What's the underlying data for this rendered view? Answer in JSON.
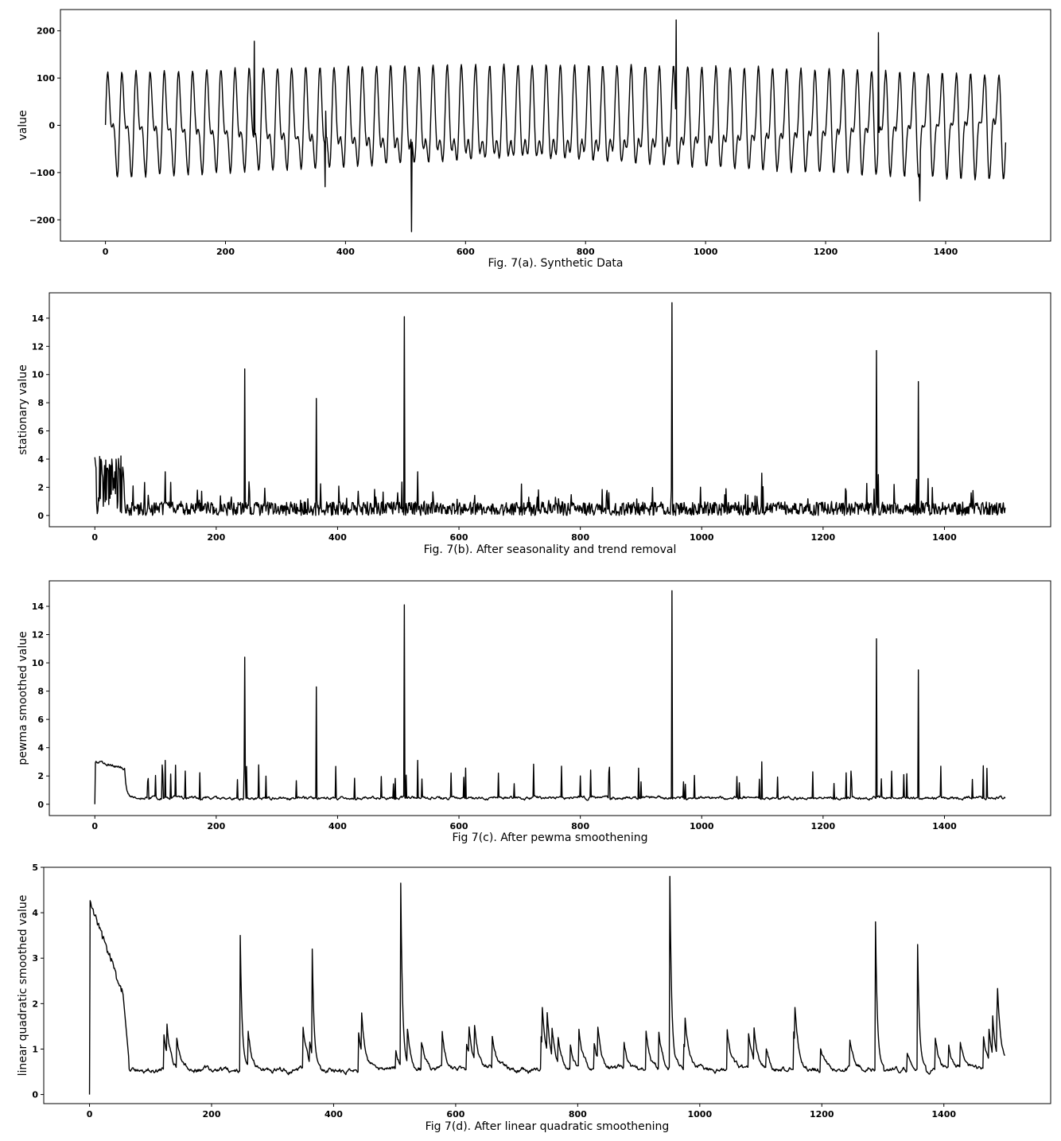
{
  "chart_data": [
    {
      "type": "line",
      "panel": "a",
      "caption": "Fig. 7(a). Synthetic Data",
      "xlabel": "",
      "ylabel": "value",
      "xlim": [
        -75,
        1575
      ],
      "ylim": [
        -245,
        245
      ],
      "xticks": [
        0,
        200,
        400,
        600,
        800,
        1000,
        1200,
        1400
      ],
      "xtick_labels": [
        "0",
        "200",
        "400",
        "600",
        "800",
        "1000",
        "1200",
        "1400"
      ],
      "yticks": [
        -200,
        -100,
        0,
        100,
        200
      ],
      "ytick_labels": [
        "−200",
        "−100",
        "0",
        "100",
        "200"
      ],
      "series": [
        {
          "color": "#000000",
          "generator": "seasonal",
          "x_range": [
            0,
            1500
          ],
          "components": [
            {
              "amp": 80,
              "period": 23.5
            },
            {
              "amp": 48,
              "period": 11.8
            }
          ],
          "spikes": [
            {
              "x": 248,
              "y": 178
            },
            {
              "x": 366,
              "y": -130
            },
            {
              "x": 367,
              "y": 30
            },
            {
              "x": 510,
              "y": -225
            },
            {
              "x": 951,
              "y": 223
            },
            {
              "x": 1288,
              "y": 196
            },
            {
              "x": 1357,
              "y": -160
            }
          ]
        }
      ]
    },
    {
      "type": "line",
      "panel": "b",
      "caption": "Fig. 7(b). After seasonality and trend removal",
      "xlabel": "",
      "ylabel": "stationary value",
      "xlim": [
        -75,
        1575
      ],
      "ylim": [
        -0.8,
        15.8
      ],
      "xticks": [
        0,
        200,
        400,
        600,
        800,
        1000,
        1200,
        1400
      ],
      "xtick_labels": [
        "0",
        "200",
        "400",
        "600",
        "800",
        "1000",
        "1200",
        "1400"
      ],
      "yticks": [
        0,
        2,
        4,
        6,
        8,
        10,
        12,
        14
      ],
      "ytick_labels": [
        "0",
        "2",
        "4",
        "6",
        "8",
        "10",
        "12",
        "14"
      ],
      "series": [
        {
          "color": "#000000",
          "generator": "noise",
          "x_range": [
            0,
            1500
          ],
          "base": 0.6,
          "early_until": 50,
          "early_level": 2.8,
          "spikes": [
            {
              "x": 116,
              "y": 3.1
            },
            {
              "x": 247,
              "y": 10.4
            },
            {
              "x": 365,
              "y": 8.3
            },
            {
              "x": 510,
              "y": 14.1
            },
            {
              "x": 532,
              "y": 3.1
            },
            {
              "x": 951,
              "y": 15.1
            },
            {
              "x": 1099,
              "y": 3.0
            },
            {
              "x": 1288,
              "y": 11.7
            },
            {
              "x": 1291,
              "y": 2.9
            },
            {
              "x": 1357,
              "y": 9.5
            }
          ]
        }
      ]
    },
    {
      "type": "line",
      "panel": "c",
      "caption": "Fig 7(c). After pewma smoothening",
      "xlabel": "",
      "ylabel": "pewma smoothed value",
      "xlim": [
        -75,
        1575
      ],
      "ylim": [
        -0.8,
        15.8
      ],
      "xticks": [
        0,
        200,
        400,
        600,
        800,
        1000,
        1200,
        1400
      ],
      "xtick_labels": [
        "0",
        "200",
        "400",
        "600",
        "800",
        "1000",
        "1200",
        "1400"
      ],
      "yticks": [
        0,
        2,
        4,
        6,
        8,
        10,
        12,
        14
      ],
      "ytick_labels": [
        "0",
        "2",
        "4",
        "6",
        "8",
        "10",
        "12",
        "14"
      ],
      "series": [
        {
          "color": "#000000",
          "generator": "smoothed",
          "x_range": [
            0,
            1500
          ],
          "base": 0.45,
          "early_until": 50,
          "early_level": 3.0,
          "spikes": [
            {
              "x": 116,
              "y": 3.1
            },
            {
              "x": 247,
              "y": 10.4
            },
            {
              "x": 365,
              "y": 8.3
            },
            {
              "x": 510,
              "y": 14.1
            },
            {
              "x": 532,
              "y": 3.1
            },
            {
              "x": 951,
              "y": 15.1
            },
            {
              "x": 1099,
              "y": 3.0
            },
            {
              "x": 1288,
              "y": 11.7
            },
            {
              "x": 1357,
              "y": 9.5
            }
          ]
        }
      ]
    },
    {
      "type": "line",
      "panel": "d",
      "caption": "Fig 7(d). After linear quadratic smoothening",
      "xlabel": "",
      "ylabel": "linear quadratic smoothed value",
      "xlim": [
        -75,
        1575
      ],
      "ylim": [
        -0.2,
        5.0
      ],
      "xticks": [
        0,
        200,
        400,
        600,
        800,
        1000,
        1200,
        1400
      ],
      "xtick_labels": [
        "0",
        "200",
        "400",
        "600",
        "800",
        "1000",
        "1200",
        "1400"
      ],
      "yticks": [
        0,
        1,
        2,
        3,
        4,
        5
      ],
      "ytick_labels": [
        "0",
        "1",
        "2",
        "3",
        "4",
        "5"
      ],
      "series": [
        {
          "color": "#000000",
          "generator": "decay",
          "x_range": [
            0,
            1500
          ],
          "start_peak": 4.3,
          "early_until": 55,
          "spikes": [
            {
              "x": 247,
              "y": 3.5
            },
            {
              "x": 365,
              "y": 3.2
            },
            {
              "x": 510,
              "y": 4.65
            },
            {
              "x": 951,
              "y": 4.8
            },
            {
              "x": 1288,
              "y": 3.8
            },
            {
              "x": 1357,
              "y": 3.3
            }
          ]
        }
      ]
    }
  ]
}
